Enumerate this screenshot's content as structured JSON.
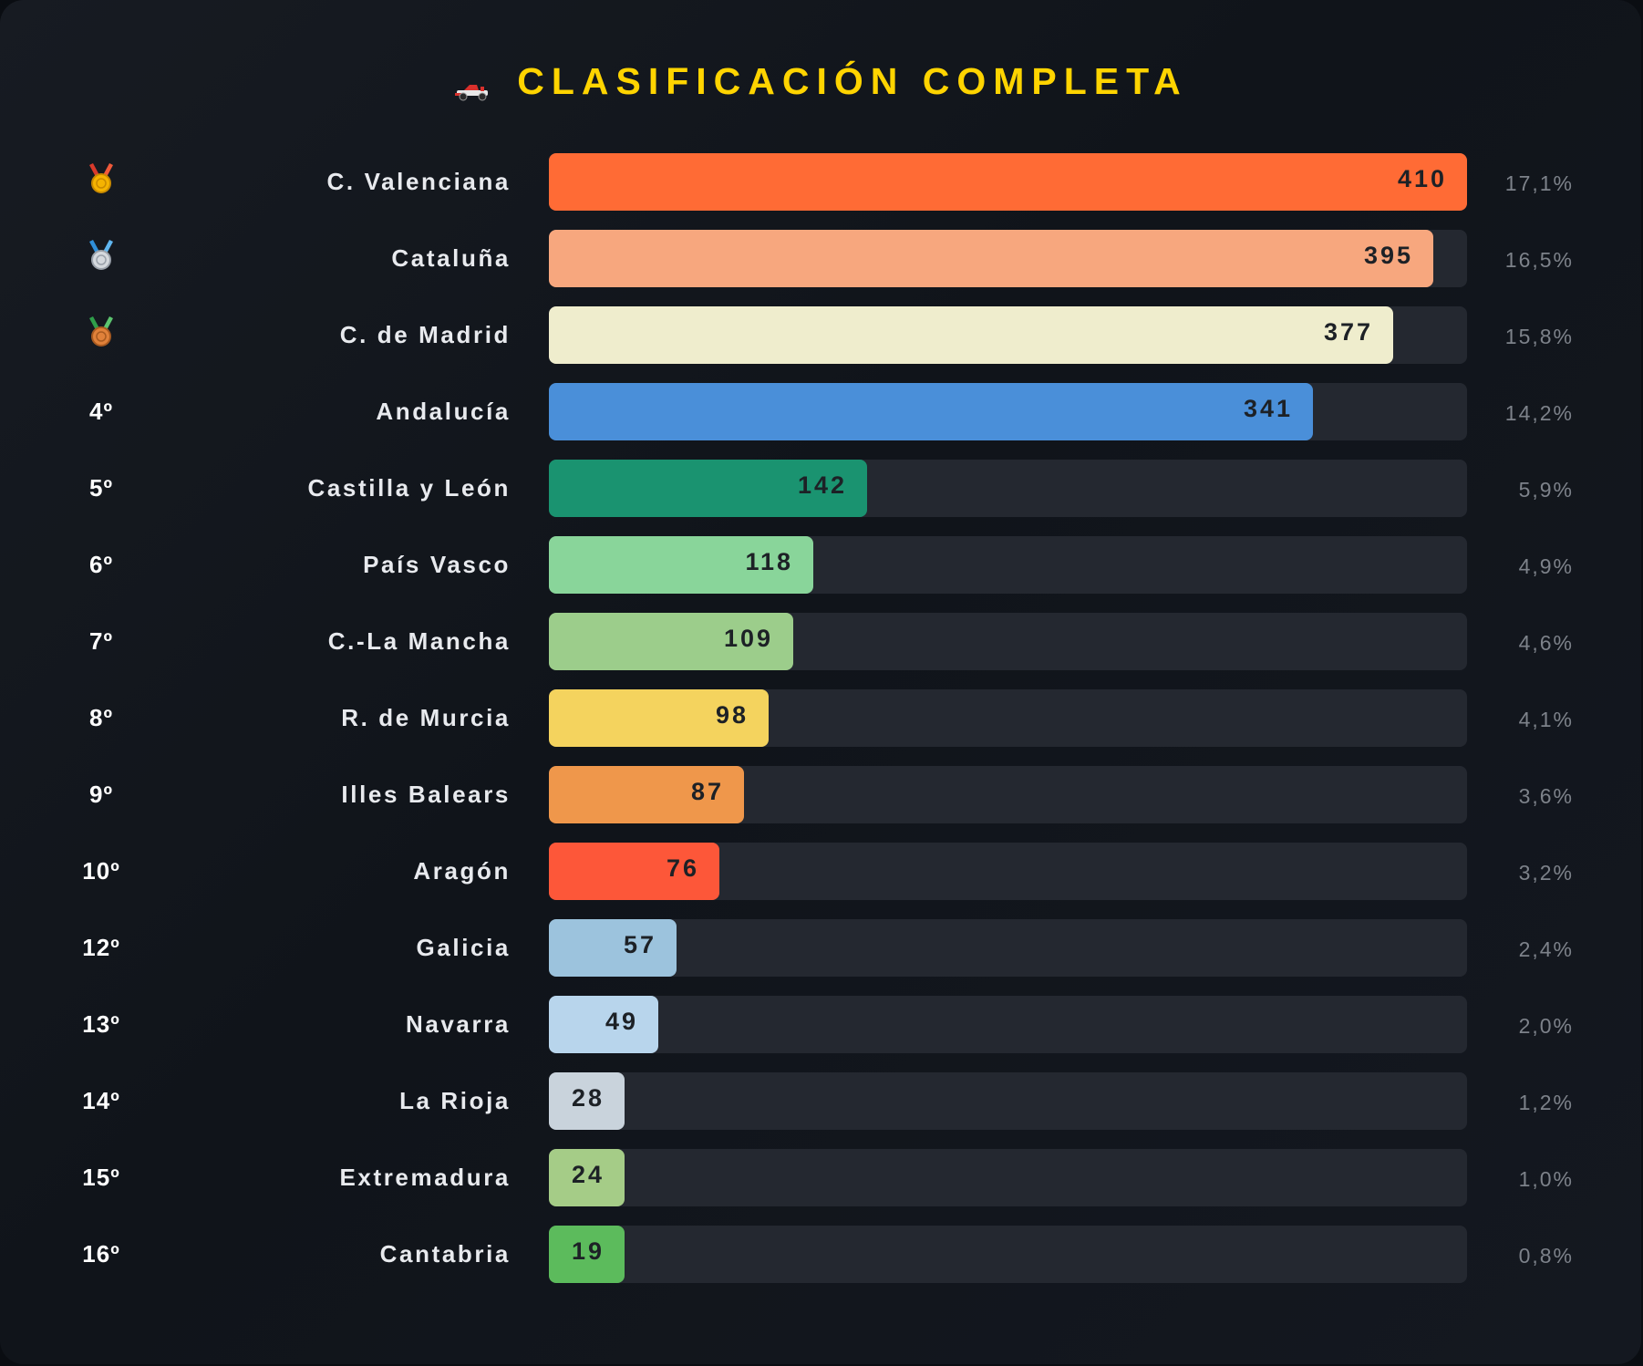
{
  "title": "CLASIFICACIÓN COMPLETA",
  "title_icon": "race-car-icon",
  "colors": {
    "title": "#ffd400",
    "track": "#242830"
  },
  "chart_data": {
    "type": "bar",
    "orientation": "horizontal",
    "title": "CLASIFICACIÓN COMPLETA",
    "xlim": [
      0,
      410
    ],
    "grid": false,
    "legend": "none",
    "rows": [
      {
        "rank": "1º",
        "rank_icon": "gold-medal-icon",
        "region": "C. Valenciana",
        "value": 410,
        "value_label": "410",
        "pct": "17,1%",
        "color": "#ff6b35"
      },
      {
        "rank": "2º",
        "rank_icon": "silver-medal-icon",
        "region": "Cataluña",
        "value": 395,
        "value_label": "395",
        "pct": "16,5%",
        "color": "#f7a77e"
      },
      {
        "rank": "3º",
        "rank_icon": "bronze-medal-icon",
        "region": "C. de Madrid",
        "value": 377,
        "value_label": "377",
        "pct": "15,8%",
        "color": "#efedcd"
      },
      {
        "rank": "4º",
        "region": "Andalucía",
        "value": 341,
        "value_label": "341",
        "pct": "14,2%",
        "color": "#4a8fd9"
      },
      {
        "rank": "5º",
        "region": "Castilla y León",
        "value": 142,
        "value_label": "142",
        "pct": "5,9%",
        "color": "#1a9370"
      },
      {
        "rank": "6º",
        "region": "País Vasco",
        "value": 118,
        "value_label": "118",
        "pct": "4,9%",
        "color": "#89d59a"
      },
      {
        "rank": "7º",
        "region": "C.-La Mancha",
        "value": 109,
        "value_label": "109",
        "pct": "4,6%",
        "color": "#9ccd8b"
      },
      {
        "rank": "8º",
        "region": "R. de Murcia",
        "value": 98,
        "value_label": "98",
        "pct": "4,1%",
        "color": "#f4d35e"
      },
      {
        "rank": "9º",
        "region": "Illes Balears",
        "value": 87,
        "value_label": "87",
        "pct": "3,6%",
        "color": "#ef974b"
      },
      {
        "rank": "10º",
        "region": "Aragón",
        "value": 76,
        "value_label": "76",
        "pct": "3,2%",
        "color": "#fd5739"
      },
      {
        "rank": "12º",
        "region": "Galicia",
        "value": 57,
        "value_label": "57",
        "pct": "2,4%",
        "color": "#9cc3dd"
      },
      {
        "rank": "13º",
        "region": "Navarra",
        "value": 49,
        "value_label": "49",
        "pct": "2,0%",
        "color": "#b8d5ec"
      },
      {
        "rank": "14º",
        "region": "La Rioja",
        "value": 28,
        "value_label": "28",
        "pct": "1,2%",
        "color": "#c9d3dc"
      },
      {
        "rank": "15º",
        "region": "Extremadura",
        "value": 24,
        "value_label": "24",
        "pct": "1,0%",
        "color": "#a5cc87"
      },
      {
        "rank": "16º",
        "region": "Cantabria",
        "value": 19,
        "value_label": "19",
        "pct": "0,8%",
        "color": "#5cbb5c"
      }
    ]
  }
}
